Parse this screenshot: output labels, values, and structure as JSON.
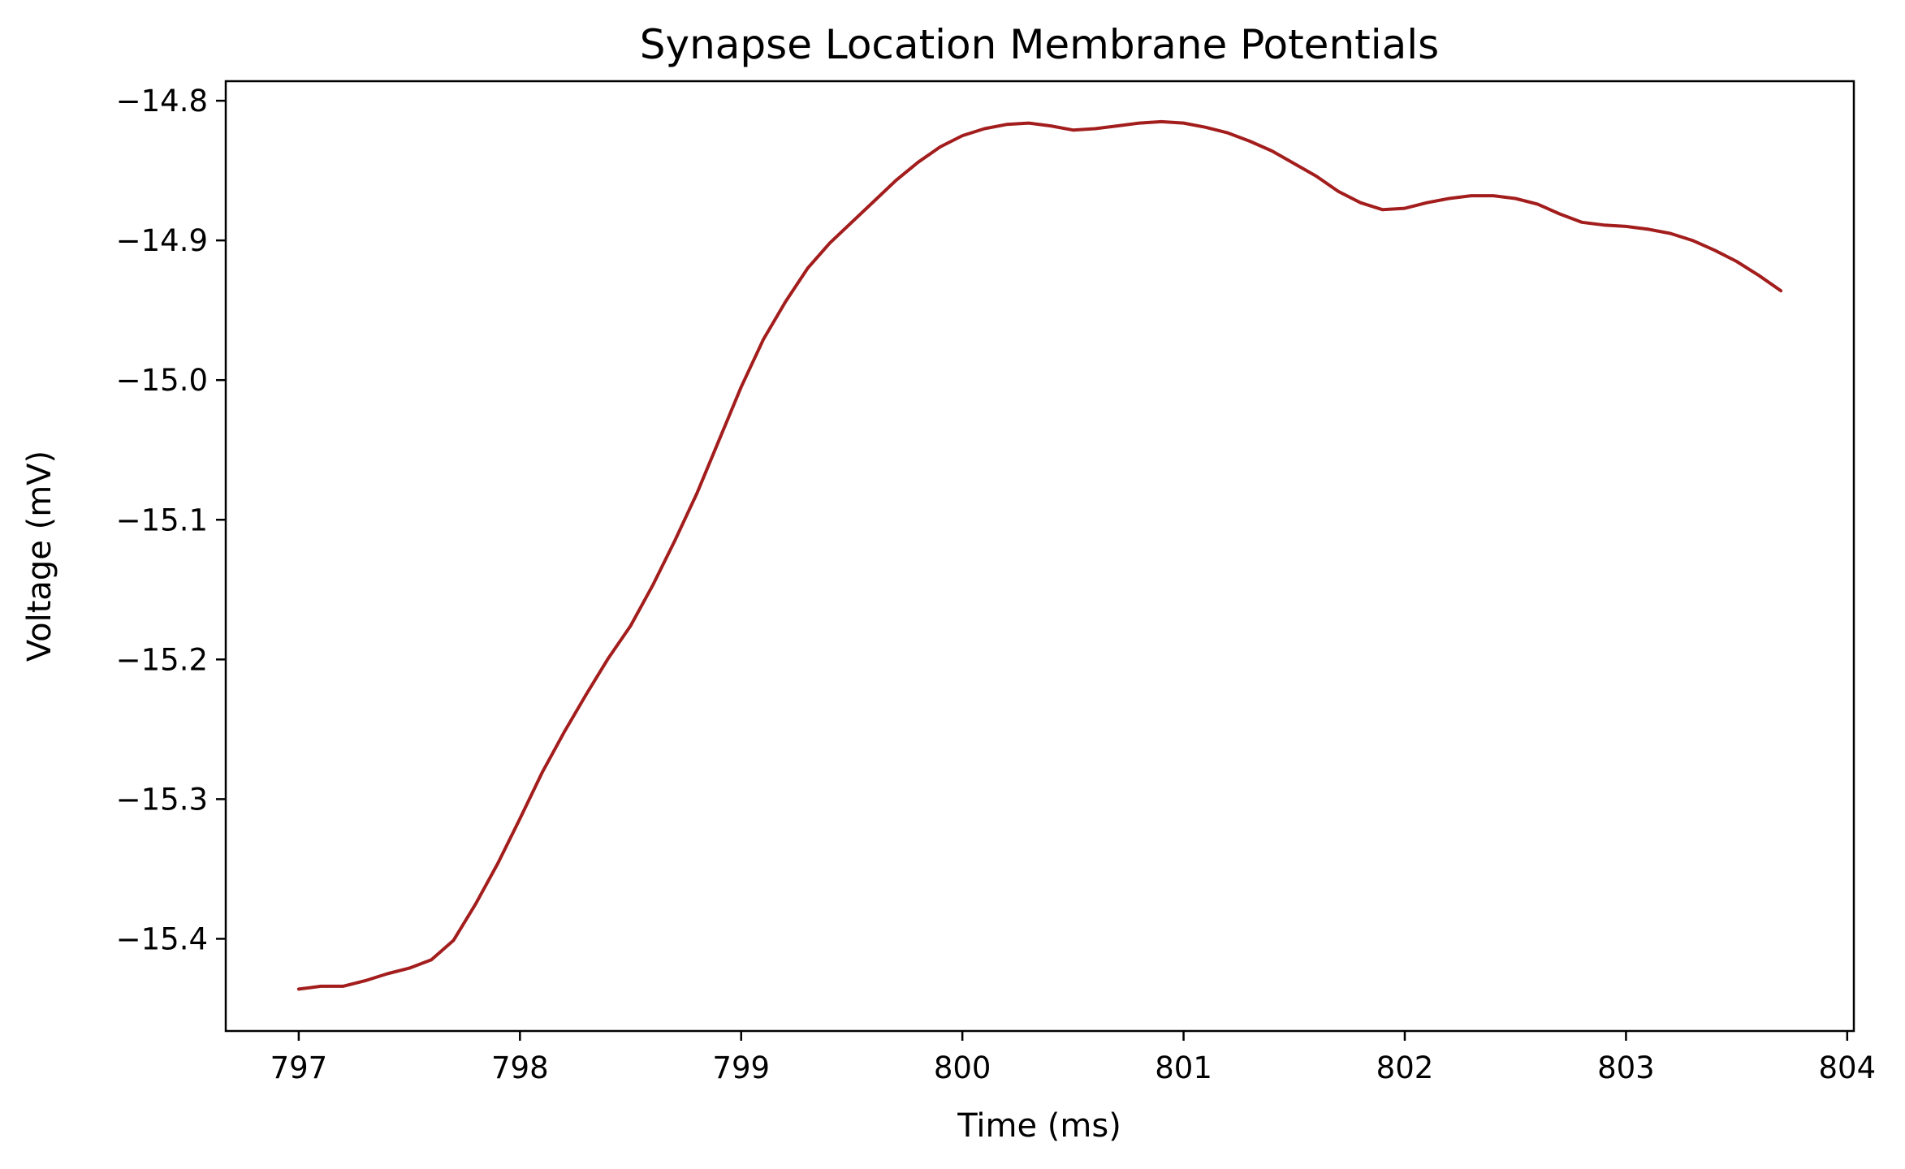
{
  "chart_data": {
    "type": "line",
    "title": "Synapse Location Membrane Potentials",
    "xlabel": "Time (ms)",
    "ylabel": "Voltage (mV)",
    "xlim": [
      796.67,
      804.03
    ],
    "ylim": [
      -15.466,
      -14.786
    ],
    "xticks": [
      797,
      798,
      799,
      800,
      801,
      802,
      803,
      804
    ],
    "xtick_labels": [
      "797",
      "798",
      "799",
      "800",
      "801",
      "802",
      "803",
      "804"
    ],
    "yticks": [
      -14.8,
      -14.9,
      -15.0,
      -15.1,
      -15.2,
      -15.3,
      -15.4
    ],
    "ytick_labels": [
      "−14.8",
      "−14.9",
      "−15.0",
      "−15.1",
      "−15.2",
      "−15.3",
      "−15.4"
    ],
    "grid": false,
    "legend": "none",
    "series": [
      {
        "color": "#a31d1d",
        "x": [
          797.0,
          797.1,
          797.2,
          797.3,
          797.4,
          797.5,
          797.6,
          797.7,
          797.8,
          797.9,
          798.0,
          798.1,
          798.2,
          798.3,
          798.4,
          798.5,
          798.6,
          798.7,
          798.8,
          798.9,
          799.0,
          799.1,
          799.2,
          799.3,
          799.4,
          799.5,
          799.6,
          799.7,
          799.8,
          799.9,
          800.0,
          800.1,
          800.2,
          800.3,
          800.4,
          800.5,
          800.6,
          800.7,
          800.8,
          800.9,
          801.0,
          801.1,
          801.2,
          801.3,
          801.4,
          801.5,
          801.6,
          801.7,
          801.8,
          801.9,
          802.0,
          802.1,
          802.2,
          802.3,
          802.4,
          802.5,
          802.6,
          802.7,
          802.8,
          802.9,
          803.0,
          803.1,
          803.2,
          803.3,
          803.4,
          803.5,
          803.6,
          803.7
        ],
        "y": [
          -15.436,
          -15.434,
          -15.434,
          -15.43,
          -15.425,
          -15.421,
          -15.415,
          -15.401,
          -15.375,
          -15.346,
          -15.314,
          -15.281,
          -15.252,
          -15.225,
          -15.199,
          -15.176,
          -15.147,
          -15.115,
          -15.081,
          -15.043,
          -15.005,
          -14.971,
          -14.944,
          -14.92,
          -14.902,
          -14.887,
          -14.872,
          -14.857,
          -14.844,
          -14.833,
          -14.825,
          -14.82,
          -14.817,
          -14.816,
          -14.818,
          -14.821,
          -14.82,
          -14.818,
          -14.816,
          -14.815,
          -14.816,
          -14.819,
          -14.823,
          -14.829,
          -14.836,
          -14.845,
          -14.854,
          -14.865,
          -14.873,
          -14.878,
          -14.877,
          -14.873,
          -14.87,
          -14.868,
          -14.868,
          -14.87,
          -14.874,
          -14.881,
          -14.887,
          -14.889,
          -14.89,
          -14.892,
          -14.895,
          -14.9,
          -14.907,
          -14.915,
          -14.925,
          -14.936
        ]
      }
    ]
  }
}
